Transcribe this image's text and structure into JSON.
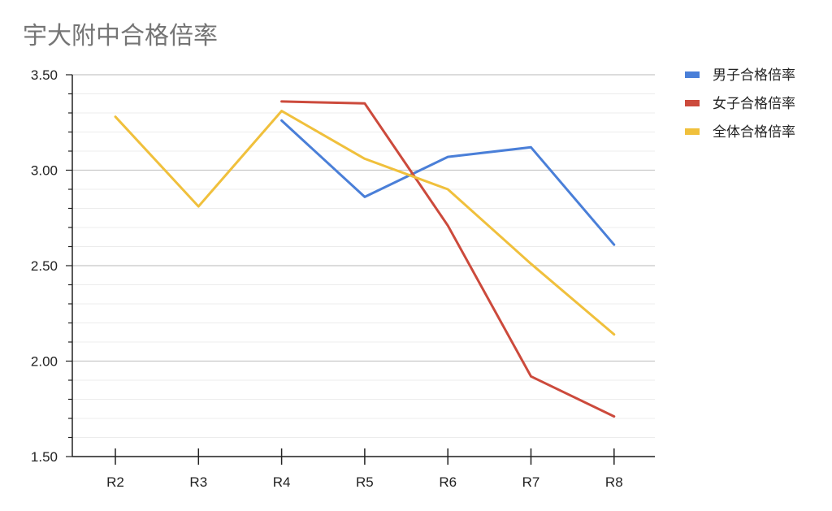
{
  "chart_data": {
    "type": "line",
    "title": "宇大附中合格倍率",
    "categories": [
      "R2",
      "R3",
      "R4",
      "R5",
      "R6",
      "R7",
      "R8"
    ],
    "ylim": [
      1.5,
      3.5
    ],
    "yticks": [
      "1.50",
      "2.00",
      "2.50",
      "3.00",
      "3.50"
    ],
    "grid": true,
    "legend_position": "right",
    "series": [
      {
        "name": "男子合格倍率",
        "color": "#4a7fd8",
        "values": [
          null,
          null,
          3.26,
          2.86,
          3.07,
          3.12,
          2.61
        ]
      },
      {
        "name": "女子合格倍率",
        "color": "#cc4a3c",
        "values": [
          null,
          null,
          3.36,
          3.35,
          2.71,
          1.92,
          1.71
        ]
      },
      {
        "name": "全体合格倍率",
        "color": "#f0c03c",
        "values": [
          3.28,
          2.81,
          3.31,
          3.06,
          2.9,
          2.51,
          2.14
        ]
      }
    ]
  }
}
